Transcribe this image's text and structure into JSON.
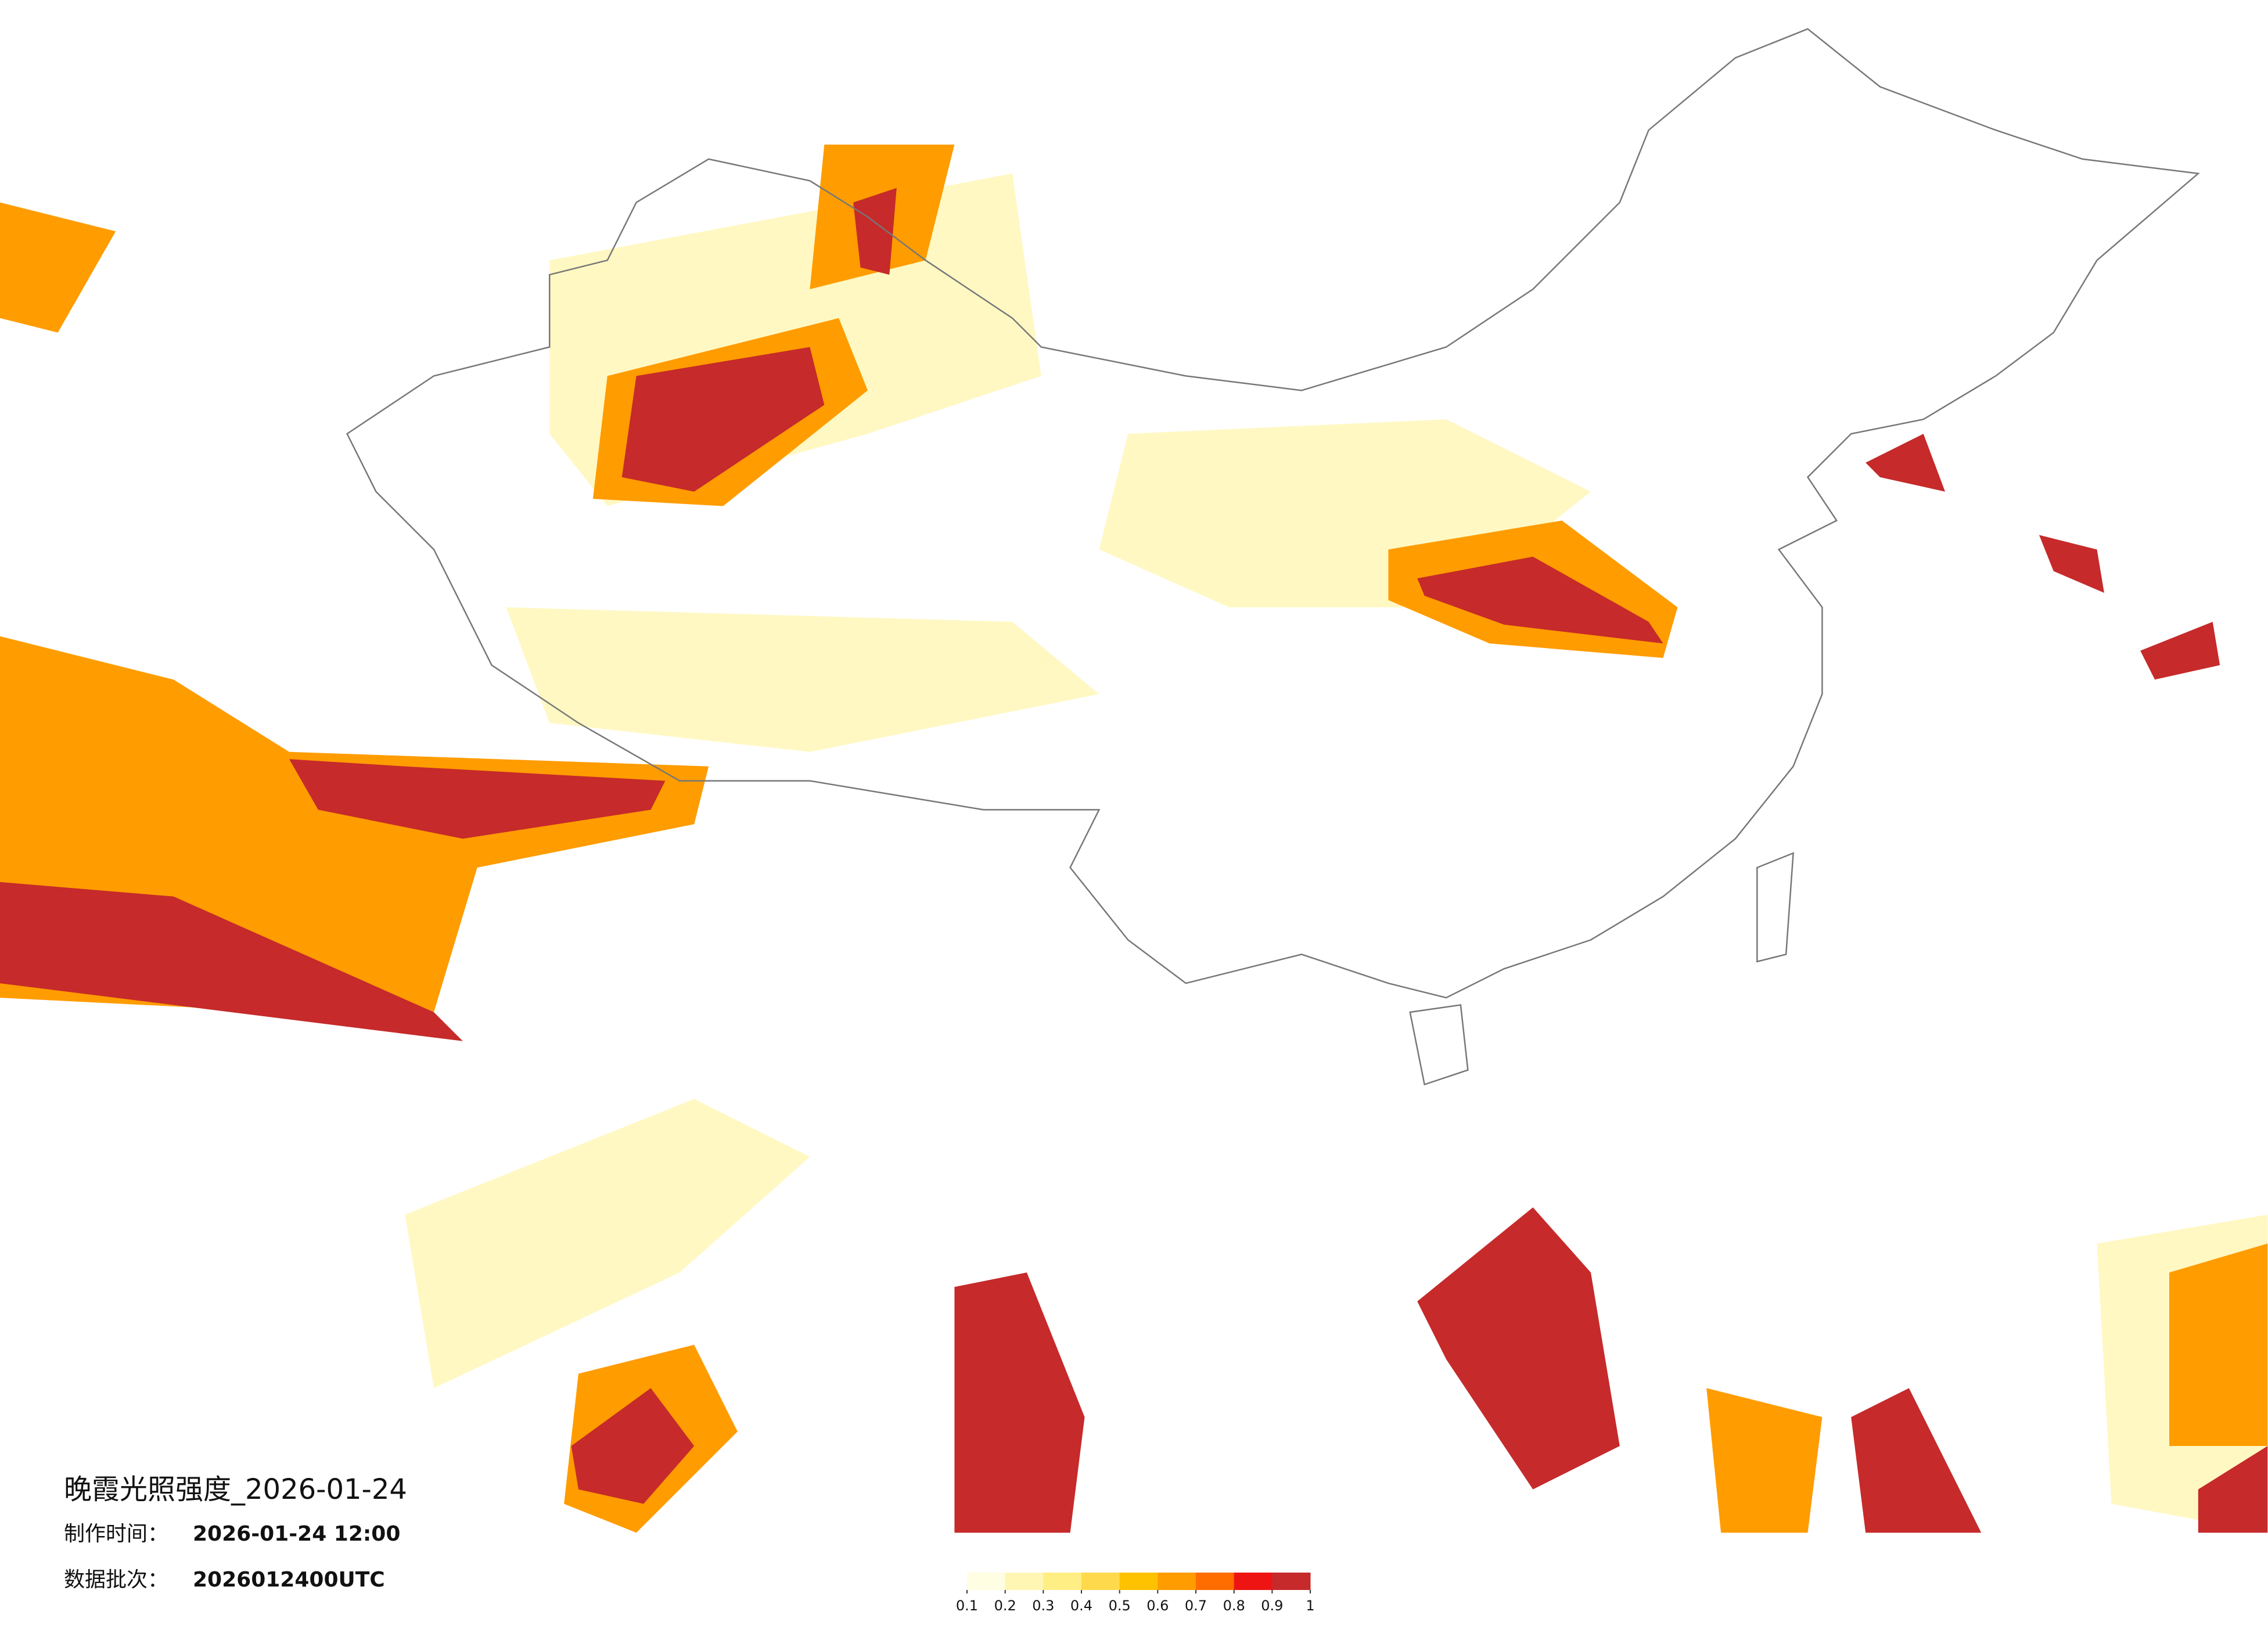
{
  "header": {
    "title": "晚霞光照强度_2026-01-24",
    "made_label": "制作时间：",
    "made_value": "2026-01-24 12:00",
    "batch_label": "数据批次：",
    "batch_value": "2026012400UTC"
  },
  "legend": {
    "ticks": [
      0.1,
      0.2,
      0.3,
      0.4,
      0.5,
      0.6,
      0.7,
      0.8,
      0.9,
      1
    ],
    "colors": [
      "#fffde2",
      "#fff6b4",
      "#ffee84",
      "#ffd94c",
      "#ffc200",
      "#ff9c00",
      "#ff6c00",
      "#ef1414",
      "#c62a2a"
    ]
  }
}
